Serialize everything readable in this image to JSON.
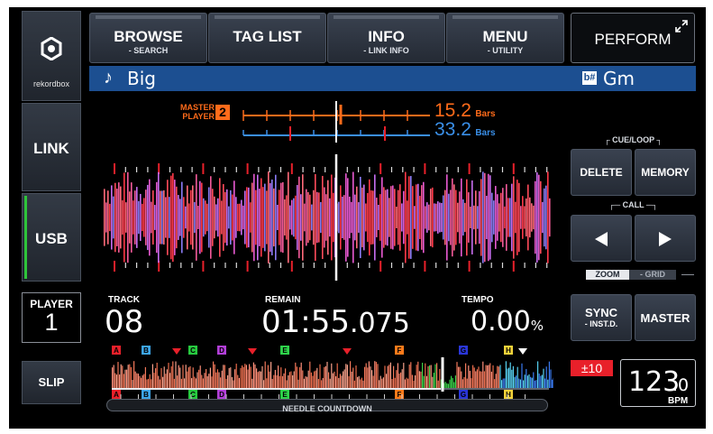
{
  "sidebar": {
    "logo_text": "rekordbox",
    "link_label": "LINK",
    "usb_label": "USB",
    "player_label": "PLAYER",
    "player_number": "1",
    "slip_label": "SLIP"
  },
  "tabs": [
    {
      "label": "BROWSE",
      "sub": "- SEARCH"
    },
    {
      "label": "TAG LIST",
      "sub": ""
    },
    {
      "label": "INFO",
      "sub": "- LINK INFO"
    },
    {
      "label": "MENU",
      "sub": "- UTILITY"
    }
  ],
  "perform_label": "PERFORM",
  "track": {
    "title": "Big",
    "key": "Gm",
    "key_icon": "key-sharp-icon"
  },
  "beat_sync": {
    "master_line1": "MASTER",
    "master_line2": "PLAYER",
    "master_player": "2",
    "master_bars": "15.2",
    "this_bars": "33.2",
    "bars_label": "Bars",
    "master_color": "#ff6b1a",
    "this_color": "#3a8fe8"
  },
  "cue_loop": {
    "title": "CUE/LOOP",
    "delete_label": "DELETE",
    "memory_label": "MEMORY",
    "call_title": "CALL",
    "prev_icon": "triangle-left-icon",
    "next_icon": "triangle-right-icon",
    "zoom_label": "ZOOM",
    "grid_label": "- GRID"
  },
  "info": {
    "track_label": "TRACK",
    "track_number": "08",
    "remain_label": "REMAIN",
    "remain_main": "01:55",
    "remain_fraction": ".075",
    "tempo_label": "TEMPO",
    "tempo_value": "0.00",
    "tempo_unit": "%"
  },
  "controls": {
    "sync_label": "SYNC",
    "sync_sub": "- INST.D.",
    "master_label": "MASTER",
    "tempo_range": "±10",
    "bpm_main": "123",
    "bpm_fraction": ".0",
    "bpm_unit": "BPM"
  },
  "hot_cues": [
    {
      "letter": "A",
      "color": "#e8202a"
    },
    {
      "letter": "B",
      "color": "#3da5e8"
    },
    {
      "letter": "C",
      "color": "#27c93f"
    },
    {
      "letter": "D",
      "color": "#b23fd8"
    },
    {
      "letter": "E",
      "color": "#2ed24a"
    },
    {
      "letter": "F",
      "color": "#ff7a1a"
    },
    {
      "letter": "G",
      "color": "#2a36d8"
    },
    {
      "letter": "H",
      "color": "#f2d23a"
    }
  ],
  "needle_label": "NEEDLE COUNTDOWN",
  "colors": {
    "accent_blue": "#1c4f91",
    "memory_red": "#e8202a",
    "tempo_range_bg": "#e8202a",
    "usb_indicator": "#2ec43a"
  }
}
